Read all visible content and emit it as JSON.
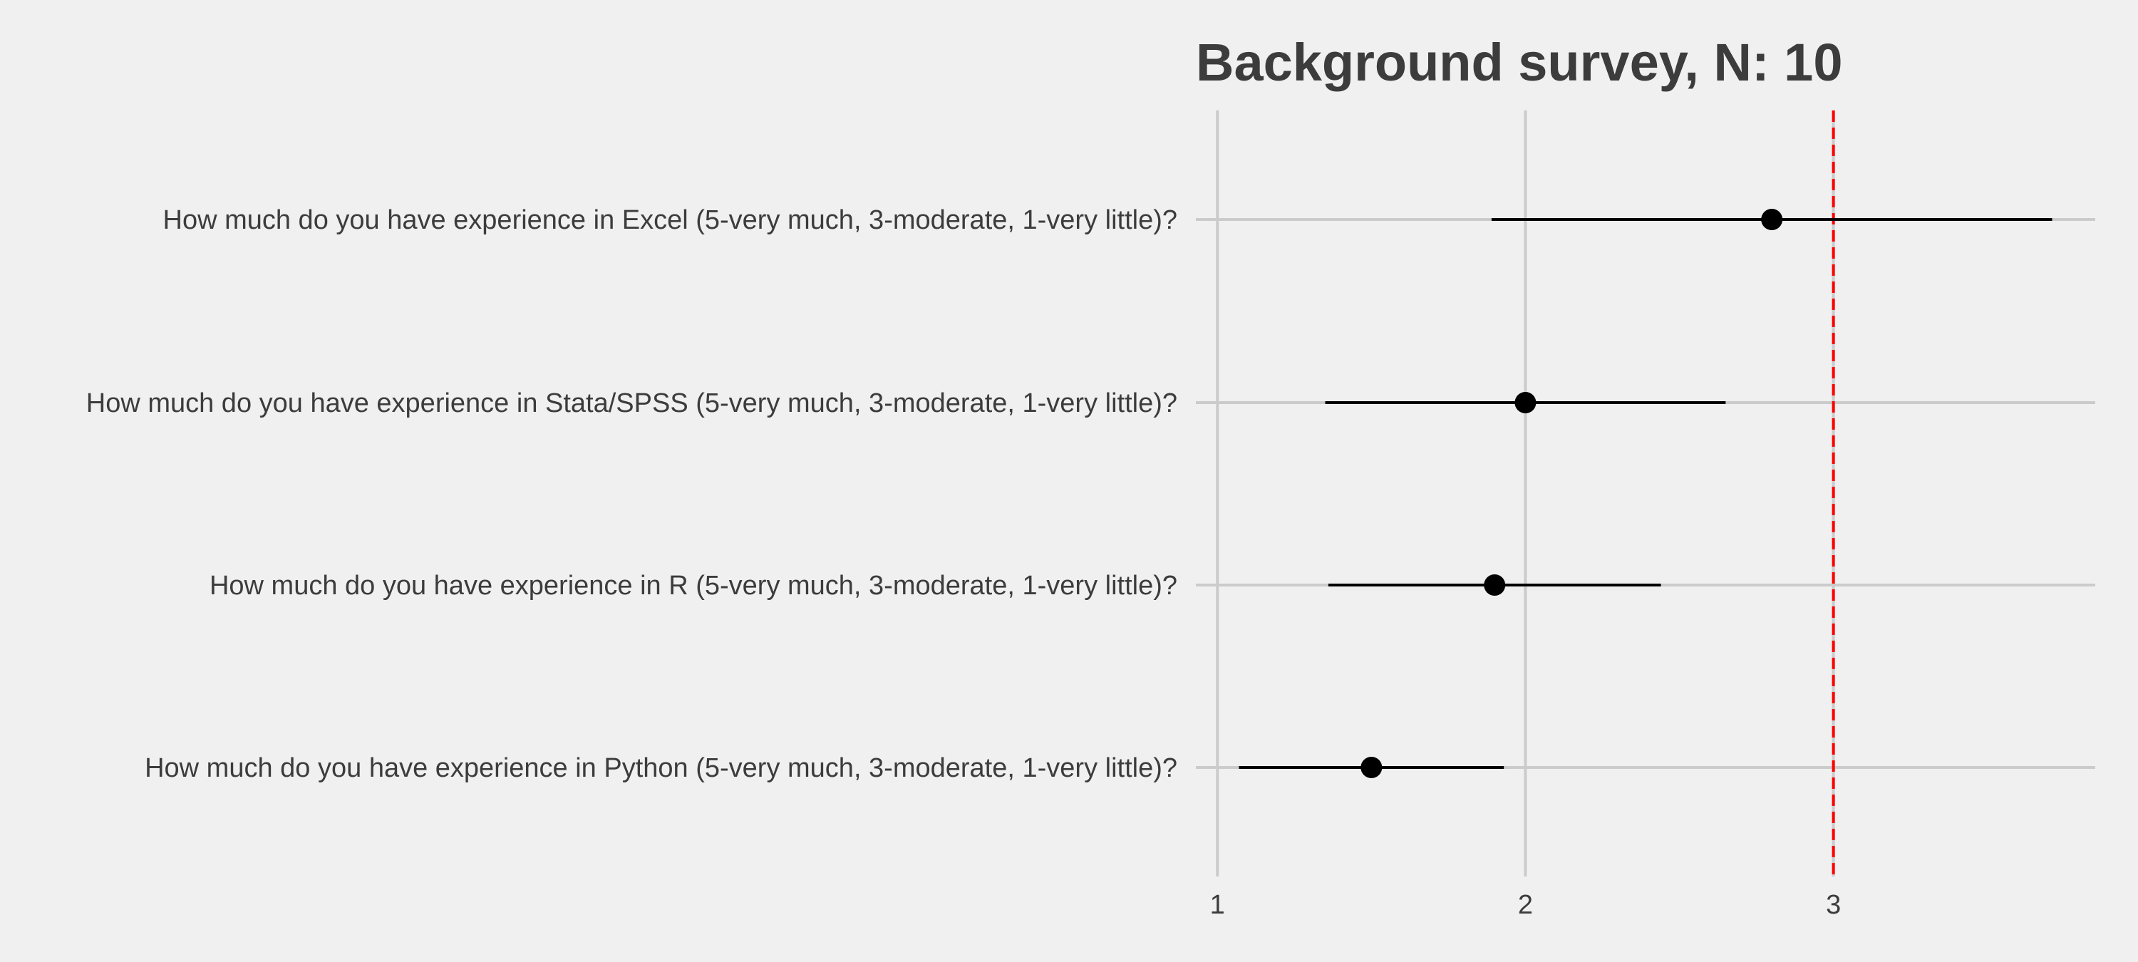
{
  "chart_data": {
    "type": "scatter",
    "title": "Background survey, N: 10",
    "xlabel": "",
    "ylabel": "",
    "xlim": [
      0.93,
      3.85
    ],
    "x_ticks": [
      1,
      2,
      3
    ],
    "x_tick_labels": [
      "1",
      "2",
      "3"
    ],
    "grid": true,
    "legend": "none",
    "reference_line": {
      "x": 3,
      "color": "#ff0000",
      "style": "dashed"
    },
    "colors": {
      "background": "#f0f0f0",
      "grid": "#cbcbcb",
      "points": "#000000",
      "reference": "#ff0000"
    },
    "categories": [
      "How much do you have experience in Excel (5-very much, 3-moderate, 1-very little)?",
      "How much do you have experience in Stata/SPSS (5-very much, 3-moderate, 1-very little)?",
      "How much do you have experience in R (5-very much, 3-moderate, 1-very little)?",
      "How much do you have experience in Python (5-very much, 3-moderate, 1-very little)?"
    ],
    "series": [
      {
        "values": [
          2.8,
          2.0,
          1.9,
          1.5
        ],
        "lower": [
          1.89,
          1.35,
          1.36,
          1.07
        ],
        "upper": [
          3.71,
          2.65,
          2.44,
          1.93
        ]
      }
    ]
  }
}
